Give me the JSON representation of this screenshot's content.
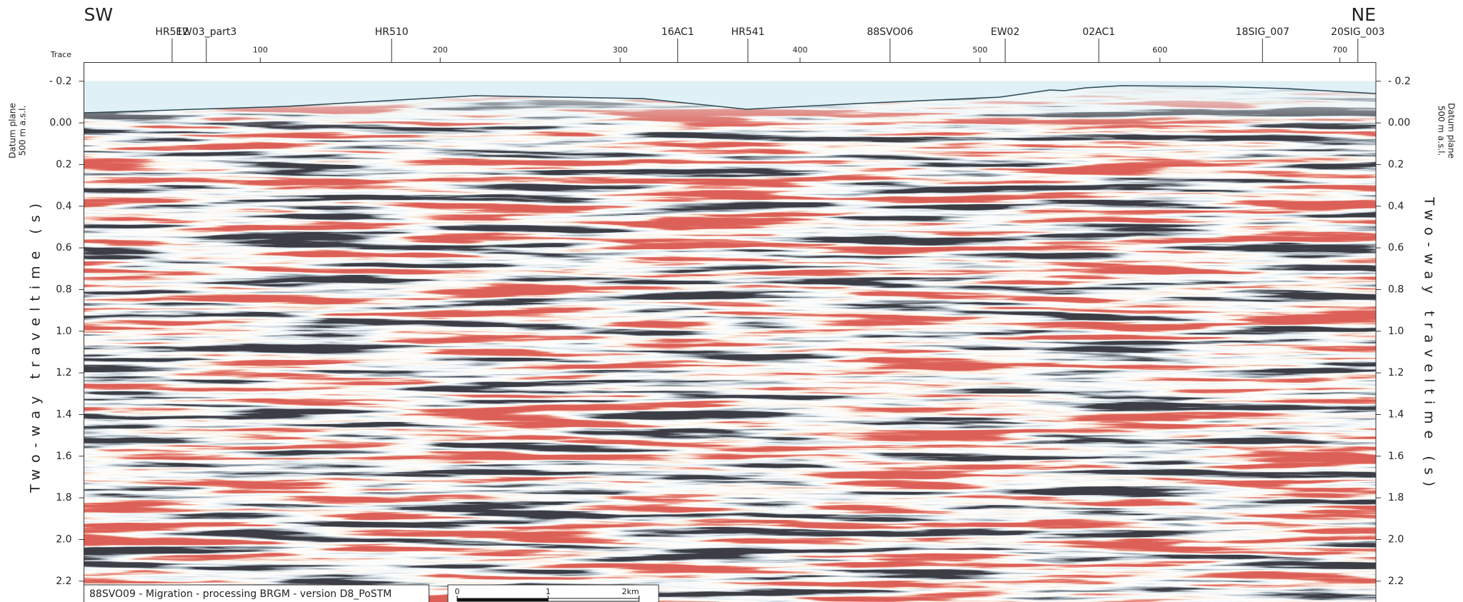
{
  "chart_data": {
    "type": "seismic",
    "left_label": "SW",
    "right_label": "NE",
    "x_axis_title": "Trace",
    "y_axis_title": "Two-way traveltime (s)",
    "datum_label": [
      "Datum plane",
      "500 m a.s.l."
    ],
    "caption": "88SVO09 - Migration - processing BRGM - version D8_PoSTM",
    "xlim": [
      2,
      720
    ],
    "xticks": [
      100,
      200,
      300,
      400,
      500,
      600,
      700
    ],
    "ylim": [
      -0.29,
      2.3
    ],
    "yticks": [
      {
        "value": -0.2,
        "label": "- 0.2"
      },
      {
        "value": 0,
        "label": "0.00"
      },
      0.2,
      0.4,
      0.6,
      0.8,
      {
        "value": 1.0,
        "label": "1.0"
      },
      1.2,
      1.4,
      1.6,
      1.8,
      {
        "value": 2.0,
        "label": "2.0"
      },
      2.2
    ],
    "wells": [
      {
        "name": "HR512",
        "trace": 51
      },
      {
        "name": "EW03_part3",
        "trace": 70
      },
      {
        "name": "HR510",
        "trace": 173
      },
      {
        "name": "16AC1",
        "trace": 332
      },
      {
        "name": "HR541",
        "trace": 371
      },
      {
        "name": "88SVO06",
        "trace": 450
      },
      {
        "name": "EW02",
        "trace": 514
      },
      {
        "name": "02AC1",
        "trace": 566
      },
      {
        "name": "18SIG_007",
        "trace": 657
      },
      {
        "name": "20SIG_003",
        "trace": 710
      }
    ],
    "scale_bar_km": [
      0,
      1,
      {
        "value": 2,
        "label": "2km"
      }
    ]
  }
}
